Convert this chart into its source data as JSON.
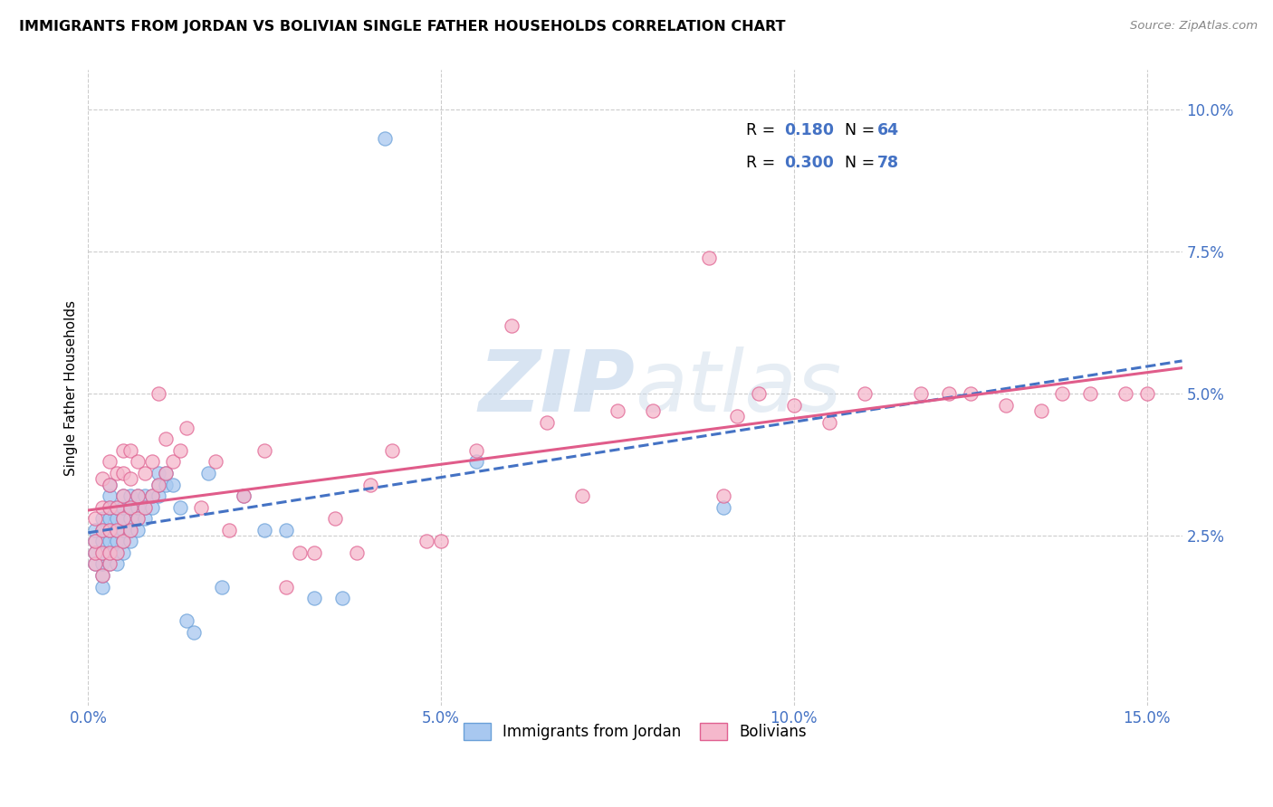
{
  "title": "IMMIGRANTS FROM JORDAN VS BOLIVIAN SINGLE FATHER HOUSEHOLDS CORRELATION CHART",
  "source": "Source: ZipAtlas.com",
  "ylabel": "Single Father Households",
  "xmin": 0.0,
  "xmax": 0.155,
  "ymin": -0.005,
  "ymax": 0.107,
  "yticks": [
    0.025,
    0.05,
    0.075,
    0.1
  ],
  "ytick_labels": [
    "2.5%",
    "5.0%",
    "7.5%",
    "10.0%"
  ],
  "xticks": [
    0.0,
    0.05,
    0.1,
    0.15
  ],
  "xtick_labels": [
    "0.0%",
    "5.0%",
    "10.0%",
    "15.0%"
  ],
  "series1_color": "#a8c8f0",
  "series2_color": "#f5b8cc",
  "series1_edge_color": "#6aa0d8",
  "series2_edge_color": "#e06090",
  "series1_label": "Immigrants from Jordan",
  "series2_label": "Bolivians",
  "series1_R": "0.180",
  "series1_N": "64",
  "series2_R": "0.300",
  "series2_N": "78",
  "trend1_color": "#4472c4",
  "trend2_color": "#e05c8a",
  "blue_text_color": "#4472c4",
  "watermark_color": "#c8dff0",
  "series1_x": [
    0.001,
    0.001,
    0.001,
    0.001,
    0.002,
    0.002,
    0.002,
    0.002,
    0.002,
    0.002,
    0.002,
    0.003,
    0.003,
    0.003,
    0.003,
    0.003,
    0.003,
    0.003,
    0.003,
    0.004,
    0.004,
    0.004,
    0.004,
    0.004,
    0.004,
    0.005,
    0.005,
    0.005,
    0.005,
    0.005,
    0.005,
    0.006,
    0.006,
    0.006,
    0.006,
    0.006,
    0.007,
    0.007,
    0.007,
    0.007,
    0.008,
    0.008,
    0.008,
    0.009,
    0.009,
    0.01,
    0.01,
    0.01,
    0.011,
    0.011,
    0.012,
    0.013,
    0.014,
    0.015,
    0.017,
    0.019,
    0.022,
    0.025,
    0.028,
    0.032,
    0.036,
    0.042,
    0.055,
    0.09
  ],
  "series1_y": [
    0.02,
    0.022,
    0.024,
    0.026,
    0.016,
    0.018,
    0.02,
    0.022,
    0.024,
    0.026,
    0.028,
    0.02,
    0.022,
    0.024,
    0.026,
    0.028,
    0.03,
    0.032,
    0.034,
    0.02,
    0.022,
    0.024,
    0.026,
    0.028,
    0.03,
    0.022,
    0.024,
    0.026,
    0.028,
    0.03,
    0.032,
    0.024,
    0.026,
    0.028,
    0.03,
    0.032,
    0.026,
    0.028,
    0.03,
    0.032,
    0.028,
    0.03,
    0.032,
    0.03,
    0.032,
    0.032,
    0.034,
    0.036,
    0.034,
    0.036,
    0.034,
    0.03,
    0.01,
    0.008,
    0.036,
    0.016,
    0.032,
    0.026,
    0.026,
    0.014,
    0.014,
    0.095,
    0.038,
    0.03
  ],
  "series2_x": [
    0.001,
    0.001,
    0.001,
    0.001,
    0.002,
    0.002,
    0.002,
    0.002,
    0.002,
    0.003,
    0.003,
    0.003,
    0.003,
    0.003,
    0.003,
    0.004,
    0.004,
    0.004,
    0.004,
    0.005,
    0.005,
    0.005,
    0.005,
    0.005,
    0.006,
    0.006,
    0.006,
    0.006,
    0.007,
    0.007,
    0.007,
    0.008,
    0.008,
    0.009,
    0.009,
    0.01,
    0.01,
    0.011,
    0.011,
    0.012,
    0.013,
    0.014,
    0.016,
    0.018,
    0.02,
    0.022,
    0.025,
    0.028,
    0.03,
    0.032,
    0.035,
    0.038,
    0.04,
    0.043,
    0.048,
    0.05,
    0.055,
    0.06,
    0.065,
    0.07,
    0.075,
    0.08,
    0.088,
    0.09,
    0.092,
    0.095,
    0.1,
    0.105,
    0.11,
    0.118,
    0.122,
    0.125,
    0.13,
    0.135,
    0.138,
    0.142,
    0.147,
    0.15
  ],
  "series2_y": [
    0.02,
    0.022,
    0.024,
    0.028,
    0.018,
    0.022,
    0.026,
    0.03,
    0.035,
    0.02,
    0.022,
    0.026,
    0.03,
    0.034,
    0.038,
    0.022,
    0.026,
    0.03,
    0.036,
    0.024,
    0.028,
    0.032,
    0.036,
    0.04,
    0.026,
    0.03,
    0.035,
    0.04,
    0.028,
    0.032,
    0.038,
    0.03,
    0.036,
    0.032,
    0.038,
    0.034,
    0.05,
    0.036,
    0.042,
    0.038,
    0.04,
    0.044,
    0.03,
    0.038,
    0.026,
    0.032,
    0.04,
    0.016,
    0.022,
    0.022,
    0.028,
    0.022,
    0.034,
    0.04,
    0.024,
    0.024,
    0.04,
    0.062,
    0.045,
    0.032,
    0.047,
    0.047,
    0.074,
    0.032,
    0.046,
    0.05,
    0.048,
    0.045,
    0.05,
    0.05,
    0.05,
    0.05,
    0.048,
    0.047,
    0.05,
    0.05,
    0.05,
    0.05
  ]
}
